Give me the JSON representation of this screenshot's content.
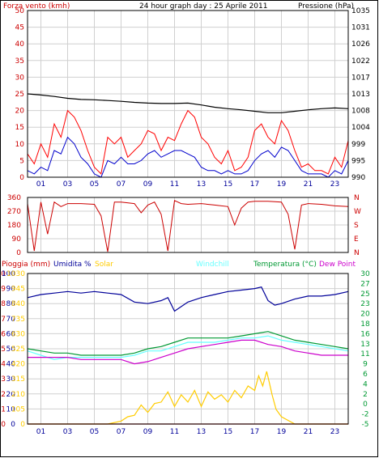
{
  "chart_data": [
    {
      "type": "line",
      "title": "24 hour graph day : 25 Aprile 2011",
      "left_axis_label": "Forza vento (kmh)",
      "right_axis_label": "Pressione (hPa)",
      "y_left_ticks": [
        "0",
        "5",
        "10",
        "15",
        "20",
        "25",
        "30",
        "35",
        "40",
        "45",
        "50"
      ],
      "y_left_range": [
        0,
        50
      ],
      "y_right_ticks": [
        "990",
        "995",
        "999",
        "1004",
        "1008",
        "1013",
        "1017",
        "1022",
        "1026",
        "1031",
        "1035"
      ],
      "y_right_range": [
        990,
        1035
      ],
      "x_ticks": [
        "01",
        "03",
        "05",
        "07",
        "09",
        "11",
        "13",
        "15",
        "17",
        "19",
        "21",
        "23"
      ],
      "x_range": [
        0,
        24
      ],
      "series": [
        {
          "name": "Forza vento (kmh)",
          "color": "#ff0000",
          "x": [
            0,
            0.5,
            1,
            1.5,
            2,
            2.5,
            3,
            3.5,
            4,
            4.5,
            5,
            5.5,
            6,
            6.5,
            7,
            7.5,
            8,
            8.5,
            9,
            9.5,
            10,
            10.5,
            11,
            11.5,
            12,
            12.5,
            13,
            13.5,
            14,
            14.5,
            15,
            15.5,
            16,
            16.5,
            17,
            17.5,
            18,
            18.5,
            19,
            19.5,
            20,
            20.5,
            21,
            21.5,
            22,
            22.5,
            23,
            23.5,
            24
          ],
          "values": [
            7,
            4,
            10,
            6,
            16,
            12,
            20,
            18,
            14,
            8,
            3,
            1,
            12,
            10,
            12,
            6,
            8,
            10,
            14,
            13,
            8,
            12,
            11,
            16,
            20,
            18,
            12,
            10,
            6,
            4,
            8,
            2,
            3,
            6,
            14,
            16,
            12,
            10,
            17,
            14,
            8,
            3,
            4,
            2,
            2,
            1,
            6,
            3,
            11
          ]
        },
        {
          "name": "Wind average",
          "color": "#0000cc",
          "x": [
            0,
            0.5,
            1,
            1.5,
            2,
            2.5,
            3,
            3.5,
            4,
            4.5,
            5,
            5.5,
            6,
            6.5,
            7,
            7.5,
            8,
            8.5,
            9,
            9.5,
            10,
            10.5,
            11,
            11.5,
            12,
            12.5,
            13,
            13.5,
            14,
            14.5,
            15,
            15.5,
            16,
            16.5,
            17,
            17.5,
            18,
            18.5,
            19,
            19.5,
            20,
            20.5,
            21,
            21.5,
            22,
            22.5,
            23,
            23.5,
            24
          ],
          "values": [
            2,
            1,
            3,
            2,
            8,
            7,
            12,
            10,
            6,
            4,
            1,
            0,
            5,
            4,
            6,
            4,
            4,
            5,
            7,
            8,
            6,
            7,
            8,
            8,
            7,
            6,
            3,
            2,
            2,
            1,
            2,
            1,
            1,
            2,
            5,
            7,
            8,
            6,
            9,
            8,
            5,
            2,
            1,
            1,
            1,
            0,
            2,
            1,
            5
          ]
        },
        {
          "name": "Pressione (hPa)",
          "color": "#000000",
          "x": [
            0,
            1,
            2,
            3,
            4,
            5,
            6,
            7,
            8,
            9,
            10,
            11,
            12,
            13,
            14,
            15,
            16,
            17,
            18,
            19,
            20,
            21,
            22,
            23,
            24
          ],
          "values": [
            1012.5,
            1012.2,
            1011.8,
            1011.3,
            1011.0,
            1010.9,
            1010.7,
            1010.5,
            1010.2,
            1010.0,
            1009.9,
            1009.9,
            1010.0,
            1009.5,
            1008.9,
            1008.5,
            1008.2,
            1007.8,
            1007.4,
            1007.4,
            1007.8,
            1008.2,
            1008.5,
            1008.7,
            1008.5
          ]
        }
      ]
    },
    {
      "type": "line",
      "y_left_ticks": [
        "0",
        "90",
        "180",
        "270",
        "360"
      ],
      "y_left_range": [
        0,
        360
      ],
      "y_right_ticks": [
        "N",
        "E",
        "S",
        "W",
        "N"
      ],
      "x_range": [
        0,
        24
      ],
      "series": [
        {
          "name": "Wind direction",
          "color": "#cc0000",
          "x": [
            0,
            0.5,
            1,
            1.5,
            2,
            2.5,
            3,
            4,
            5,
            5.5,
            6,
            6.5,
            7,
            8,
            8.5,
            9,
            9.5,
            10,
            10.5,
            11,
            11.5,
            12,
            13,
            14,
            15,
            15.5,
            16,
            16.5,
            17,
            18,
            19,
            19.5,
            20,
            20.5,
            21,
            22,
            23,
            24
          ],
          "values": [
            320,
            10,
            330,
            120,
            330,
            300,
            320,
            320,
            315,
            240,
            5,
            330,
            330,
            320,
            260,
            310,
            330,
            250,
            10,
            340,
            320,
            315,
            320,
            310,
            300,
            180,
            290,
            330,
            335,
            335,
            330,
            250,
            20,
            310,
            320,
            315,
            305,
            300
          ]
        }
      ]
    },
    {
      "type": "line",
      "left_axis_labels": [
        "Pioggia (mm)",
        "Umidita %",
        "Solar"
      ],
      "center_labels": [
        "Windchill",
        "Temperatura (°C)",
        "Dew Point"
      ],
      "y_rain_ticks": [
        "0",
        "1",
        "2",
        "3",
        "4",
        "5",
        "6",
        "7",
        "8",
        "9",
        "10"
      ],
      "y_humidity_ticks": [
        "0",
        "10",
        "20",
        "30",
        "40",
        "50",
        "60",
        "70",
        "80",
        "90",
        "100"
      ],
      "y_solar_ticks": [
        "0",
        "105",
        "210",
        "315",
        "420",
        "525",
        "630",
        "735",
        "840",
        "945",
        "1030"
      ],
      "y_right_ticks": [
        "-5",
        "-2",
        "0",
        "2",
        "4",
        "6",
        "9",
        "11",
        "13",
        "16",
        "18",
        "20",
        "23",
        "25",
        "27",
        "30"
      ],
      "x_ticks": [
        "01",
        "03",
        "05",
        "07",
        "09",
        "11",
        "13",
        "15",
        "17",
        "19",
        "21",
        "23"
      ],
      "x_range": [
        0,
        24
      ],
      "humidity_range": [
        0,
        100
      ],
      "temperature_range": [
        -5,
        30
      ],
      "series": [
        {
          "name": "Umidita %",
          "color": "#000099",
          "x": [
            0,
            1,
            2,
            3,
            4,
            5,
            6,
            7,
            8,
            9,
            10,
            10.5,
            11,
            12,
            13,
            14,
            15,
            16,
            17,
            17.5,
            18,
            18.5,
            19,
            20,
            21,
            22,
            23,
            24
          ],
          "values": [
            84,
            86,
            87,
            88,
            87,
            88,
            87,
            86,
            81,
            80,
            82,
            84,
            75,
            81,
            84,
            86,
            88,
            89,
            90,
            91,
            82,
            79,
            80,
            83,
            85,
            85,
            86,
            88
          ]
        },
        {
          "name": "Temperatura (°C)",
          "color": "#009933",
          "x": [
            0,
            1,
            2,
            3,
            4,
            5,
            6,
            7,
            8,
            9,
            10,
            11,
            12,
            13,
            14,
            15,
            16,
            17,
            18,
            19,
            20,
            21,
            22,
            23,
            24
          ],
          "values": [
            12.5,
            12.0,
            11.5,
            11.5,
            11.0,
            11.0,
            11.0,
            11.0,
            11.5,
            12.5,
            13.0,
            14.0,
            15.0,
            15.0,
            15.0,
            15.0,
            15.5,
            16.0,
            16.5,
            15.5,
            14.5,
            14.0,
            13.5,
            13.0,
            12.5
          ]
        },
        {
          "name": "Windchill",
          "color": "#66ffff",
          "x": [
            0,
            1,
            2,
            3,
            4,
            5,
            6,
            7,
            8,
            9,
            10,
            11,
            12,
            13,
            14,
            15,
            16,
            17,
            18,
            19,
            20,
            21,
            22,
            23,
            24
          ],
          "values": [
            12.0,
            11.0,
            10.0,
            10.5,
            10.5,
            10.5,
            10.5,
            10.5,
            11.0,
            12.0,
            12.0,
            13.0,
            14.0,
            14.0,
            14.0,
            14.5,
            15.0,
            15.0,
            15.5,
            14.5,
            14.0,
            13.5,
            13.0,
            12.5,
            12.0
          ]
        },
        {
          "name": "Dew Point",
          "color": "#cc00cc",
          "x": [
            0,
            1,
            2,
            3,
            4,
            5,
            6,
            7,
            8,
            9,
            10,
            11,
            12,
            13,
            14,
            15,
            16,
            17,
            18,
            19,
            20,
            21,
            22,
            23,
            24
          ],
          "values": [
            10.5,
            10.5,
            10.5,
            10.5,
            10.0,
            10.0,
            10.0,
            10.0,
            9.0,
            9.5,
            10.5,
            11.5,
            12.5,
            13.0,
            13.5,
            14.0,
            14.5,
            14.5,
            13.5,
            13.0,
            12.0,
            11.5,
            11.0,
            11.0,
            11.0
          ]
        },
        {
          "name": "Solar",
          "color": "#ffcc00",
          "x": [
            0,
            6,
            7,
            7.5,
            8,
            8.5,
            9,
            9.5,
            10,
            10.5,
            11,
            11.5,
            12,
            12.5,
            13,
            13.5,
            14,
            14.5,
            15,
            15.5,
            16,
            16.5,
            17,
            17.3,
            17.6,
            17.9,
            18.1,
            18.3,
            18.6,
            19,
            20,
            24
          ],
          "values": [
            0,
            0,
            20,
            50,
            60,
            130,
            80,
            140,
            150,
            220,
            120,
            200,
            150,
            230,
            120,
            220,
            170,
            200,
            150,
            230,
            180,
            260,
            230,
            330,
            260,
            360,
            280,
            200,
            100,
            50,
            0,
            0
          ]
        },
        {
          "name": "Pioggia (mm)",
          "color": "#cc0000",
          "x": [
            0,
            24
          ],
          "values": [
            0,
            0
          ]
        }
      ]
    }
  ]
}
